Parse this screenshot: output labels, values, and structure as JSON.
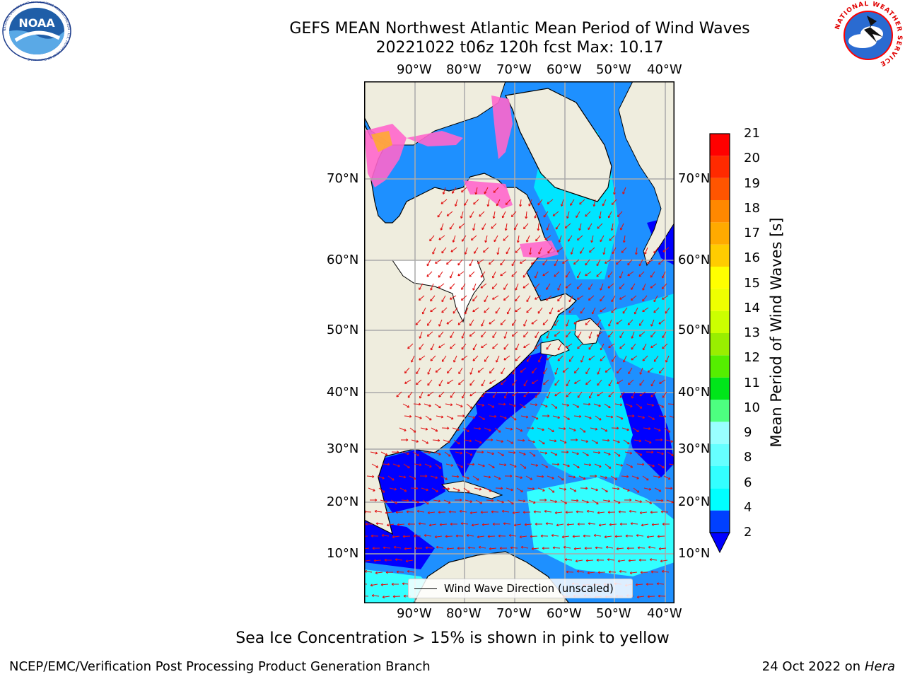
{
  "title": {
    "line1": "GEFS MEAN Northwest Atlantic Mean Period of Wind Waves",
    "line2": "20221022 t06z 120h fcst   Max: 10.17"
  },
  "map": {
    "lon_labels": [
      "90°W",
      "80°W",
      "70°W",
      "60°W",
      "50°W",
      "40°W"
    ],
    "lat_labels": [
      "70°N",
      "60°N",
      "50°N",
      "40°N",
      "30°N",
      "20°N",
      "10°N"
    ],
    "legend_label": "Wind Wave Direction (unscaled)",
    "land_color": "#efedde",
    "ice_color": "#ff66cc",
    "arrow_color": "#e01010"
  },
  "colorbar": {
    "label": "Mean Period of Wind Waves [s]",
    "ticks": [
      "2",
      "4",
      "6",
      "8",
      "9",
      "10",
      "11",
      "12",
      "13",
      "14",
      "15",
      "16",
      "17",
      "18",
      "19",
      "20",
      "21"
    ],
    "colors": [
      "#0040ff",
      "#00ffff",
      "#33ffff",
      "#66ffff",
      "#99ffff",
      "#4dff80",
      "#00e61a",
      "#55ee00",
      "#99ee00",
      "#ccff00",
      "#eeff00",
      "#ffff00",
      "#ffcc00",
      "#ffaa00",
      "#ff8800",
      "#ff5500",
      "#ff2a00",
      "#ff0000"
    ],
    "under_color": "#0000ff"
  },
  "caption": "Sea Ice Concentration > 15% is shown in pink to yellow",
  "footer": {
    "left": "NCEP/EMC/Verification Post Processing Product Generation Branch",
    "right_date": "24 Oct 2022 on ",
    "right_host": "Hera"
  },
  "logos": {
    "noaa_text": "NOAA",
    "noaa_ring": "NATIONAL OCEANIC AND ATMOSPHERIC ADMINISTRATION · U.S. DEPARTMENT OF COMMERCE",
    "nws_ring": "NATIONAL WEATHER SERVICE"
  }
}
